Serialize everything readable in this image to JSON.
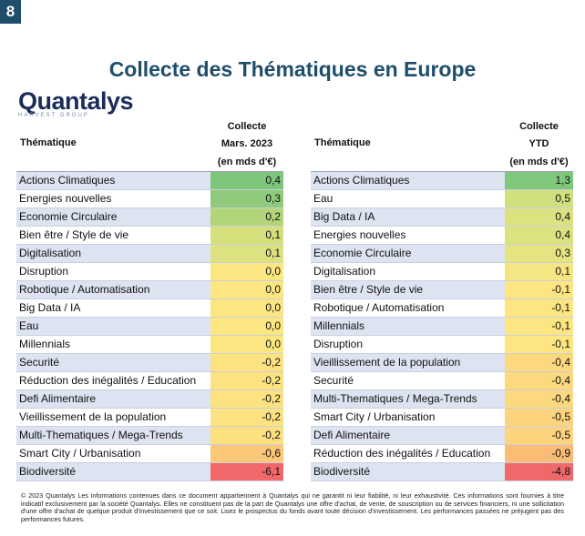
{
  "badge": "8",
  "title": "Collecte des Thématiques en Europe",
  "logo": {
    "word": "Quantalys",
    "sub": "HARVEST GROUP"
  },
  "left": {
    "theme_header": "Thématique",
    "col_line1": "Collecte",
    "col_line2": "Mars. 2023",
    "col_line3": "(en mds d'€)",
    "rows": [
      {
        "name": "Actions Climatiques",
        "value": "0,4",
        "color": "#7dc67b"
      },
      {
        "name": "Energies nouvelles",
        "value": "0,3",
        "color": "#8fcb7a"
      },
      {
        "name": "Economie Circulaire",
        "value": "0,2",
        "color": "#b3d57a"
      },
      {
        "name": "Bien être / Style de vie",
        "value": "0,1",
        "color": "#d5e07d"
      },
      {
        "name": "Digitalisation",
        "value": "0,1",
        "color": "#dbe27f"
      },
      {
        "name": "Disruption",
        "value": "0,0",
        "color": "#fbe682"
      },
      {
        "name": "Robotique / Automatisation",
        "value": "0,0",
        "color": "#fbe682"
      },
      {
        "name": "Big Data / IA",
        "value": "0,0",
        "color": "#fbe682"
      },
      {
        "name": "Eau",
        "value": "0,0",
        "color": "#fce682"
      },
      {
        "name": "Millennials",
        "value": "0,0",
        "color": "#fce682"
      },
      {
        "name": "Securité",
        "value": "-0,2",
        "color": "#fde281"
      },
      {
        "name": "Réduction des inégalités / Education",
        "value": "-0,2",
        "color": "#fde281"
      },
      {
        "name": "Defi Alimentaire",
        "value": "-0,2",
        "color": "#fde281"
      },
      {
        "name": "Vieillissement de la population",
        "value": "-0,2",
        "color": "#fde281"
      },
      {
        "name": "Multi-Thematiques / Mega-Trends",
        "value": "-0,2",
        "color": "#fde080"
      },
      {
        "name": "Smart City / Urbanisation",
        "value": "-0,6",
        "color": "#fbc877"
      },
      {
        "name": "Biodiversité",
        "value": "-6,1",
        "color": "#f1686a"
      }
    ]
  },
  "right": {
    "theme_header": "Thématique",
    "col_line1": "Collecte",
    "col_line2": "YTD",
    "col_line3": "(en mds d'€)",
    "rows": [
      {
        "name": "Actions Climatiques",
        "value": "1,3",
        "color": "#7ec77b"
      },
      {
        "name": "Eau",
        "value": "0,5",
        "color": "#d2df7e"
      },
      {
        "name": "Big Data / IA",
        "value": "0,4",
        "color": "#dbe27f"
      },
      {
        "name": "Energies nouvelles",
        "value": "0,4",
        "color": "#dde280"
      },
      {
        "name": "Economie Circulaire",
        "value": "0,3",
        "color": "#e5e481"
      },
      {
        "name": "Digitalisation",
        "value": "0,1",
        "color": "#f4e682"
      },
      {
        "name": "Bien être / Style de vie",
        "value": "-0,1",
        "color": "#fde682"
      },
      {
        "name": "Robotique / Automatisation",
        "value": "-0,1",
        "color": "#fde682"
      },
      {
        "name": "Millennials",
        "value": "-0,1",
        "color": "#fde682"
      },
      {
        "name": "Disruption",
        "value": "-0,1",
        "color": "#fde682"
      },
      {
        "name": "Vieillissement de la population",
        "value": "-0,4",
        "color": "#fdd97e"
      },
      {
        "name": "Securité",
        "value": "-0,4",
        "color": "#fdd97e"
      },
      {
        "name": "Multi-Thematiques / Mega-Trends",
        "value": "-0,4",
        "color": "#fdd97e"
      },
      {
        "name": "Smart City / Urbanisation",
        "value": "-0,5",
        "color": "#fdd47d"
      },
      {
        "name": "Defi Alimentaire",
        "value": "-0,5",
        "color": "#fdd47d"
      },
      {
        "name": "Réduction des inégalités / Education",
        "value": "-0,9",
        "color": "#fbbc76"
      },
      {
        "name": "Biodiversité",
        "value": "-4,8",
        "color": "#f1686a"
      }
    ]
  },
  "footer": "© 2023 Quantalys Les informations contenues dans ce document appartiennent à Quantalys qui ne garantit ni leur fiabilité, ni leur exhaustivité. Ces informations sont fournies à titre indicatif exclusivement par la société Quantalys. Elles ne constituent pas de la part de Quantalys une offre d'achat, de vente, de souscription ou de services financiers, ni une sollicitation d'une offre d'achat de quelque produit d'investissement que ce soit. Lisez le prospectus du fonds avant toute décision d'investissement. Les performances passées ne préjugent pas des performances futures."
}
